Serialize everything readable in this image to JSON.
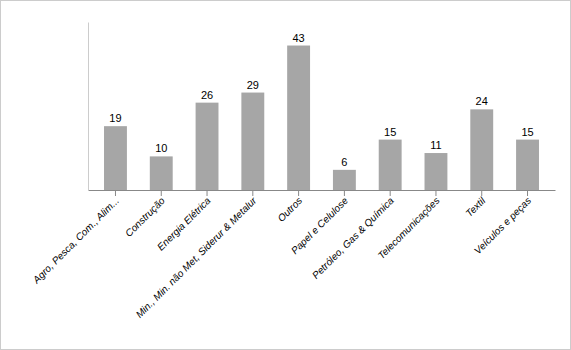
{
  "chart_data": {
    "type": "bar",
    "categories": [
      "Agro, Pesca, Com., Alim...",
      "Construção",
      "Energia Elétrica",
      "Min., Min. não Met, Siderur & Metalur",
      "Outros",
      "Papel e Celulose",
      "Petróleo, Gas & Química",
      "Telecomunicações",
      "Textil",
      "Veículos e peças"
    ],
    "values": [
      19,
      10,
      26,
      29,
      43,
      6,
      15,
      11,
      24,
      15
    ],
    "color": "#a6a6a6",
    "ylim": [
      0,
      50
    ],
    "data_labels": true,
    "tick_labels": "x"
  }
}
